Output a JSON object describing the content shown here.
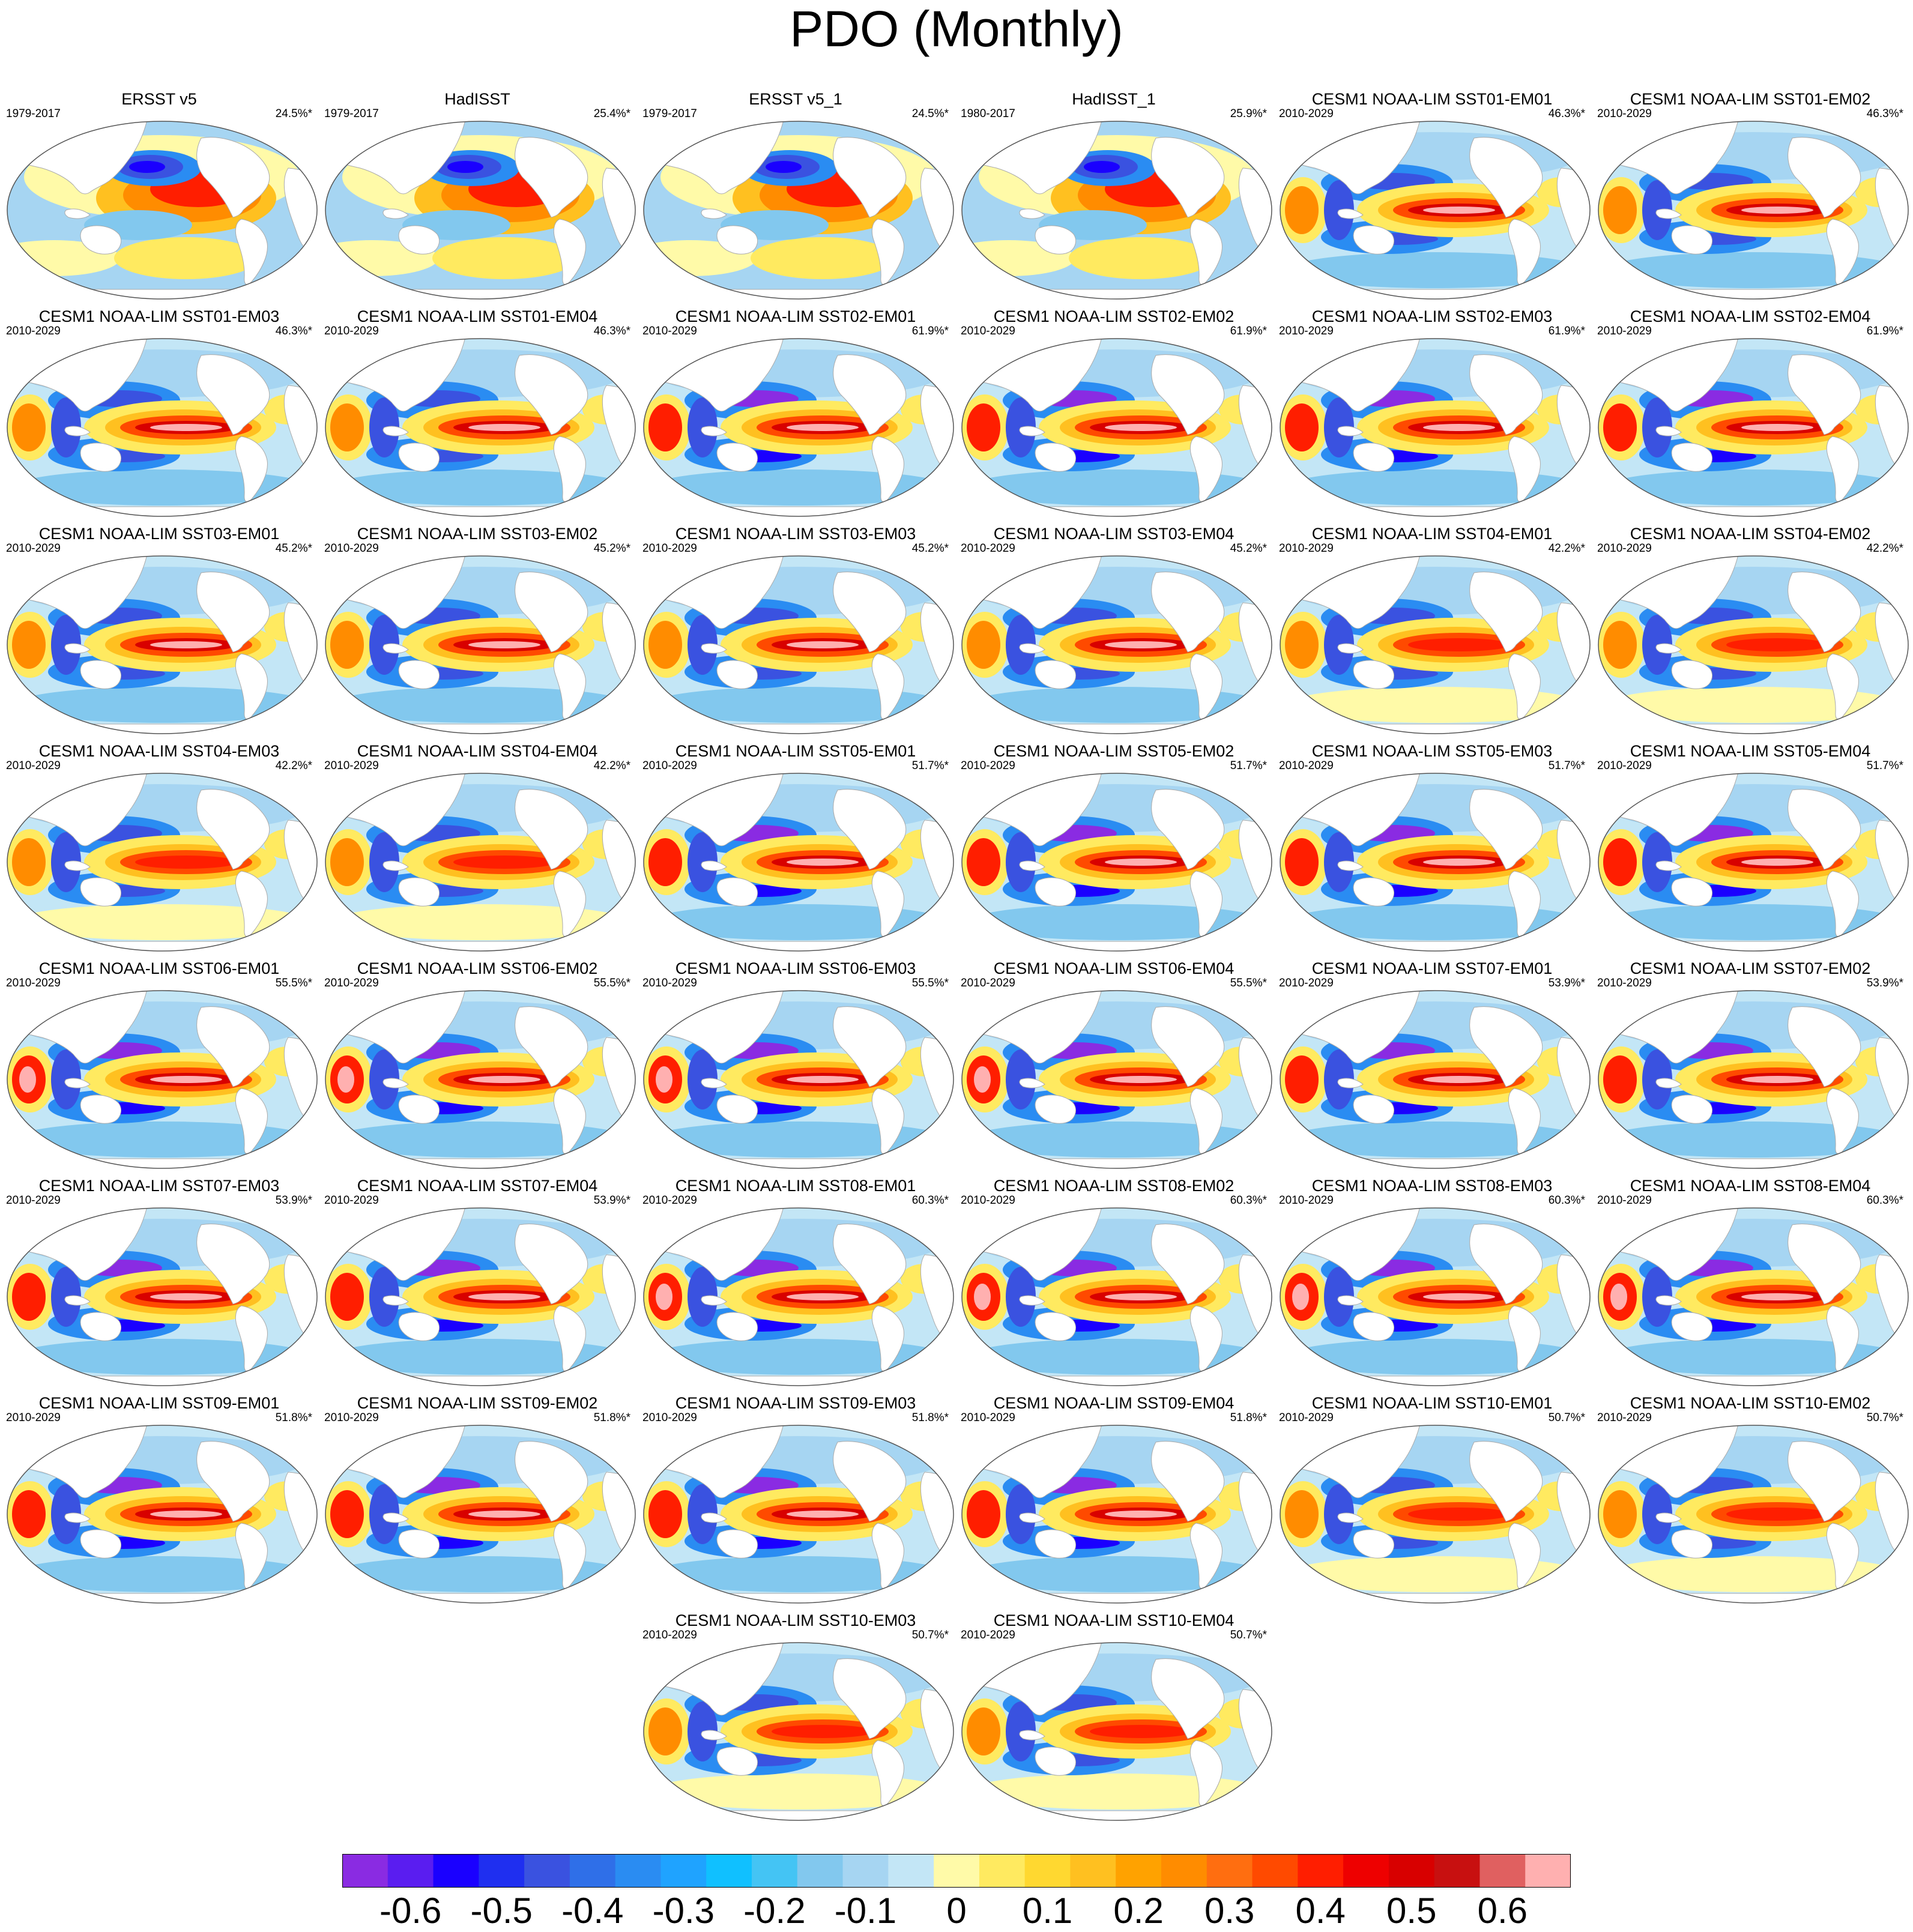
{
  "chart_data": {
    "type": "heatmap",
    "title": "PDO (Monthly)",
    "description_kind": "grid of global SST regression maps",
    "panels": [
      {
        "title": "ERSST v5",
        "period": "1979-2017",
        "pct": "24.5%*"
      },
      {
        "title": "HadISST",
        "period": "1979-2017",
        "pct": "25.4%*"
      },
      {
        "title": "ERSST v5_1",
        "period": "1979-2017",
        "pct": "24.5%*"
      },
      {
        "title": "HadISST_1",
        "period": "1980-2017",
        "pct": "25.9%*"
      },
      {
        "title": "CESM1 NOAA-LIM SST01-EM01",
        "period": "2010-2029",
        "pct": "46.3%*"
      },
      {
        "title": "CESM1 NOAA-LIM SST01-EM02",
        "period": "2010-2029",
        "pct": "46.3%*"
      },
      {
        "title": "CESM1 NOAA-LIM SST01-EM03",
        "period": "2010-2029",
        "pct": "46.3%*"
      },
      {
        "title": "CESM1 NOAA-LIM SST01-EM04",
        "period": "2010-2029",
        "pct": "46.3%*"
      },
      {
        "title": "CESM1 NOAA-LIM SST02-EM01",
        "period": "2010-2029",
        "pct": "61.9%*"
      },
      {
        "title": "CESM1 NOAA-LIM SST02-EM02",
        "period": "2010-2029",
        "pct": "61.9%*"
      },
      {
        "title": "CESM1 NOAA-LIM SST02-EM03",
        "period": "2010-2029",
        "pct": "61.9%*"
      },
      {
        "title": "CESM1 NOAA-LIM SST02-EM04",
        "period": "2010-2029",
        "pct": "61.9%*"
      },
      {
        "title": "CESM1 NOAA-LIM SST03-EM01",
        "period": "2010-2029",
        "pct": "45.2%*"
      },
      {
        "title": "CESM1 NOAA-LIM SST03-EM02",
        "period": "2010-2029",
        "pct": "45.2%*"
      },
      {
        "title": "CESM1 NOAA-LIM SST03-EM03",
        "period": "2010-2029",
        "pct": "45.2%*"
      },
      {
        "title": "CESM1 NOAA-LIM SST03-EM04",
        "period": "2010-2029",
        "pct": "45.2%*"
      },
      {
        "title": "CESM1 NOAA-LIM SST04-EM01",
        "period": "2010-2029",
        "pct": "42.2%*"
      },
      {
        "title": "CESM1 NOAA-LIM SST04-EM02",
        "period": "2010-2029",
        "pct": "42.2%*"
      },
      {
        "title": "CESM1 NOAA-LIM SST04-EM03",
        "period": "2010-2029",
        "pct": "42.2%*"
      },
      {
        "title": "CESM1 NOAA-LIM SST04-EM04",
        "period": "2010-2029",
        "pct": "42.2%*"
      },
      {
        "title": "CESM1 NOAA-LIM SST05-EM01",
        "period": "2010-2029",
        "pct": "51.7%*"
      },
      {
        "title": "CESM1 NOAA-LIM SST05-EM02",
        "period": "2010-2029",
        "pct": "51.7%*"
      },
      {
        "title": "CESM1 NOAA-LIM SST05-EM03",
        "period": "2010-2029",
        "pct": "51.7%*"
      },
      {
        "title": "CESM1 NOAA-LIM SST05-EM04",
        "period": "2010-2029",
        "pct": "51.7%*"
      },
      {
        "title": "CESM1 NOAA-LIM SST06-EM01",
        "period": "2010-2029",
        "pct": "55.5%*"
      },
      {
        "title": "CESM1 NOAA-LIM SST06-EM02",
        "period": "2010-2029",
        "pct": "55.5%*"
      },
      {
        "title": "CESM1 NOAA-LIM SST06-EM03",
        "period": "2010-2029",
        "pct": "55.5%*"
      },
      {
        "title": "CESM1 NOAA-LIM SST06-EM04",
        "period": "2010-2029",
        "pct": "55.5%*"
      },
      {
        "title": "CESM1 NOAA-LIM SST07-EM01",
        "period": "2010-2029",
        "pct": "53.9%*"
      },
      {
        "title": "CESM1 NOAA-LIM SST07-EM02",
        "period": "2010-2029",
        "pct": "53.9%*"
      },
      {
        "title": "CESM1 NOAA-LIM SST07-EM03",
        "period": "2010-2029",
        "pct": "53.9%*"
      },
      {
        "title": "CESM1 NOAA-LIM SST07-EM04",
        "period": "2010-2029",
        "pct": "53.9%*"
      },
      {
        "title": "CESM1 NOAA-LIM SST08-EM01",
        "period": "2010-2029",
        "pct": "60.3%*"
      },
      {
        "title": "CESM1 NOAA-LIM SST08-EM02",
        "period": "2010-2029",
        "pct": "60.3%*"
      },
      {
        "title": "CESM1 NOAA-LIM SST08-EM03",
        "period": "2010-2029",
        "pct": "60.3%*"
      },
      {
        "title": "CESM1 NOAA-LIM SST08-EM04",
        "period": "2010-2029",
        "pct": "60.3%*"
      },
      {
        "title": "CESM1 NOAA-LIM SST09-EM01",
        "period": "2010-2029",
        "pct": "51.8%*"
      },
      {
        "title": "CESM1 NOAA-LIM SST09-EM02",
        "period": "2010-2029",
        "pct": "51.8%*"
      },
      {
        "title": "CESM1 NOAA-LIM SST09-EM03",
        "period": "2010-2029",
        "pct": "51.8%*"
      },
      {
        "title": "CESM1 NOAA-LIM SST09-EM04",
        "period": "2010-2029",
        "pct": "51.8%*"
      },
      {
        "title": "CESM1 NOAA-LIM SST10-EM01",
        "period": "2010-2029",
        "pct": "50.7%*"
      },
      {
        "title": "CESM1 NOAA-LIM SST10-EM02",
        "period": "2010-2029",
        "pct": "50.7%*"
      },
      {
        "title": "CESM1 NOAA-LIM SST10-EM03",
        "period": "2010-2029",
        "pct": "50.7%*"
      },
      {
        "title": "CESM1 NOAA-LIM SST10-EM04",
        "period": "2010-2029",
        "pct": "50.7%*"
      }
    ],
    "colorbar": {
      "colors": [
        "#8a2be2",
        "#5a1df0",
        "#1a00ff",
        "#1f2ff0",
        "#3a52e0",
        "#2f6fe8",
        "#2a8cf2",
        "#1fa3ff",
        "#10c0ff",
        "#44c4f4",
        "#82c8ee",
        "#a6d5f2",
        "#c3e6f6",
        "#fffaa8",
        "#ffea60",
        "#ffd830",
        "#ffc020",
        "#ffa200",
        "#ff8c00",
        "#ff6e10",
        "#ff4a00",
        "#ff1e00",
        "#ee0000",
        "#d80000",
        "#c81010",
        "#e06060",
        "#ffb0b0"
      ],
      "tick_labels": [
        "-0.6",
        "-0.5",
        "-0.4",
        "-0.3",
        "-0.2",
        "-0.1",
        "0",
        "0.1",
        "0.2",
        "0.3",
        "0.4",
        "0.5",
        "0.6"
      ],
      "tick_values": [
        -0.6,
        -0.5,
        -0.4,
        -0.3,
        -0.2,
        -0.1,
        0,
        0.1,
        0.2,
        0.3,
        0.4,
        0.5,
        0.6
      ],
      "vmin": -0.675,
      "vmax": 0.675
    },
    "colors": {
      "ocean_neutral": "#c3e6f6",
      "land": "#ffffff",
      "coast": "#aaaaaa"
    }
  }
}
